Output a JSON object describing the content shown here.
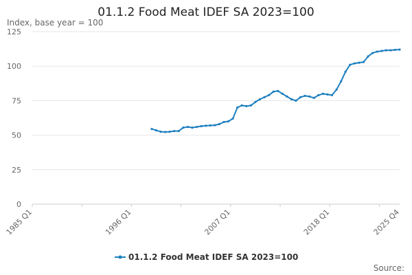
{
  "chart_data": {
    "type": "line",
    "title": "01.1.2 Food Meat IDEF SA 2023=100",
    "ylabel": "Index, base year = 100",
    "ylim": [
      0,
      125
    ],
    "y_ticks": [
      "0",
      "25",
      "50",
      "75",
      "100",
      "125"
    ],
    "x_ticks": [
      "1985 Q1",
      "1996 Q1",
      "2007 Q1",
      "2018 Q1",
      "2025 Q4"
    ],
    "grid": "horizontal",
    "legend_position": "bottom",
    "series": [
      {
        "name": "01.1.2 Food Meat IDEF SA 2023=100",
        "color": "#1d7fbf",
        "x": [
          "1998 Q2",
          "1998 Q4",
          "1999 Q2",
          "1999 Q4",
          "2000 Q2",
          "2000 Q4",
          "2001 Q2",
          "2001 Q4",
          "2002 Q2",
          "2002 Q4",
          "2003 Q2",
          "2003 Q4",
          "2004 Q2",
          "2004 Q4",
          "2005 Q2",
          "2005 Q4",
          "2006 Q2",
          "2006 Q4",
          "2007 Q2",
          "2007 Q4",
          "2008 Q2",
          "2008 Q4",
          "2009 Q2",
          "2009 Q4",
          "2010 Q2",
          "2010 Q4",
          "2011 Q2",
          "2011 Q4",
          "2012 Q2",
          "2012 Q4",
          "2013 Q2",
          "2013 Q4",
          "2014 Q2",
          "2014 Q4",
          "2015 Q2",
          "2015 Q4",
          "2016 Q2",
          "2016 Q4",
          "2017 Q2",
          "2017 Q4",
          "2018 Q2",
          "2018 Q4",
          "2019 Q2",
          "2019 Q4",
          "2020 Q2",
          "2020 Q4",
          "2021 Q2",
          "2021 Q4",
          "2022 Q2",
          "2022 Q4",
          "2023 Q2",
          "2023 Q4",
          "2024 Q2",
          "2024 Q4",
          "2025 Q2",
          "2025 Q4"
        ],
        "values": [
          54.5,
          53.5,
          52.5,
          52.3,
          52.5,
          53.0,
          53.0,
          55.5,
          56.0,
          55.5,
          56.0,
          56.5,
          56.8,
          57.0,
          57.2,
          58.0,
          59.5,
          60.0,
          62.0,
          70.0,
          71.5,
          71.0,
          71.5,
          74.0,
          76.0,
          77.5,
          79.0,
          81.5,
          82.0,
          80.0,
          78.0,
          76.0,
          75.0,
          77.5,
          78.5,
          78.0,
          77.0,
          79.0,
          80.0,
          79.5,
          79.0,
          83.0,
          89.0,
          96.0,
          101.0,
          102.0,
          102.5,
          103.0,
          107.0,
          109.5,
          110.5,
          111.0,
          111.5,
          111.5,
          111.8,
          112.0
        ]
      }
    ]
  },
  "source_label": "Source:"
}
